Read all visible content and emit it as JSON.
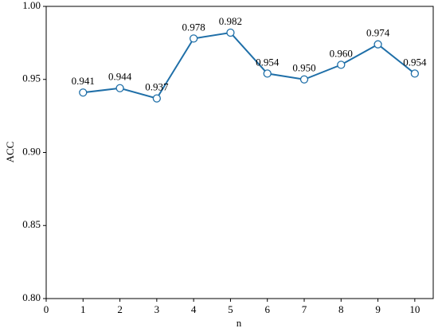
{
  "chart_data": {
    "type": "line",
    "x_label": "n",
    "y_label": "ACC",
    "x": [
      1,
      2,
      3,
      4,
      5,
      6,
      7,
      8,
      9,
      10
    ],
    "series": [
      {
        "color": "#1f6fa8",
        "values": [
          0.941,
          0.944,
          0.937,
          0.978,
          0.982,
          0.954,
          0.95,
          0.96,
          0.974,
          0.954
        ],
        "value_labels": [
          "0.941",
          "0.944",
          "0.937",
          "0.978",
          "0.982",
          "0.954",
          "0.950",
          "0.960",
          "0.974",
          "0.954"
        ]
      }
    ],
    "xlim": [
      0,
      10.5
    ],
    "xticks": [
      0,
      1,
      2,
      3,
      4,
      5,
      6,
      7,
      8,
      9,
      10
    ],
    "ylim": [
      0.8,
      1.0
    ],
    "yticks": [
      {
        "value": 0.8,
        "label": "0.80"
      },
      0.85,
      {
        "value": 0.9,
        "label": "0.90"
      },
      0.95,
      {
        "value": 1.0,
        "label": "1.00"
      }
    ]
  }
}
